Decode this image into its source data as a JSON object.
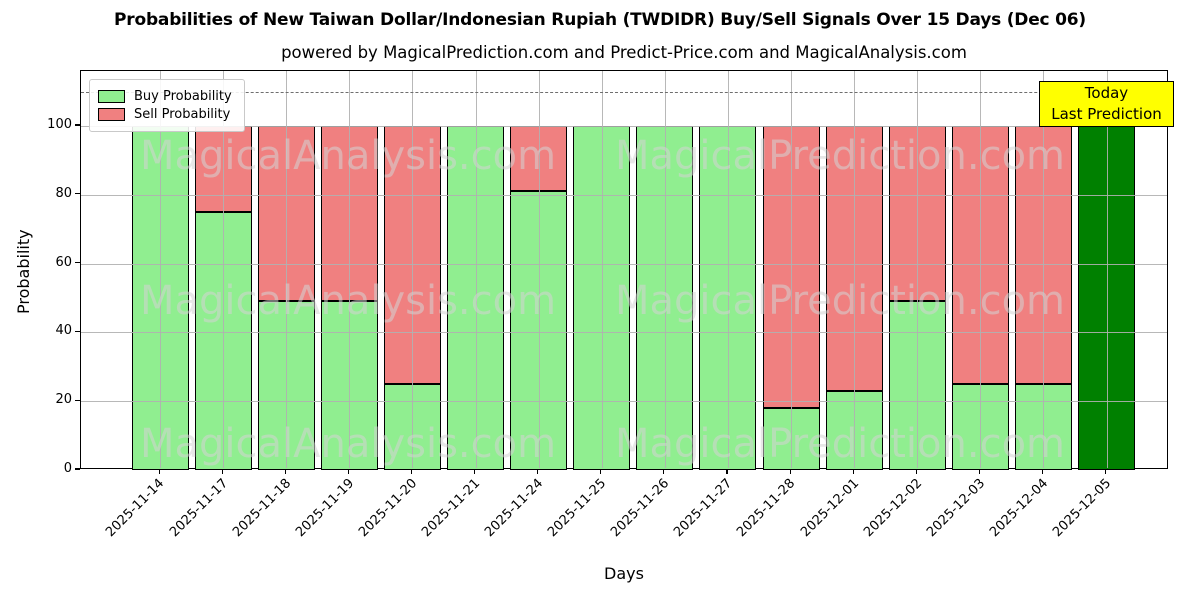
{
  "header": {
    "title": "Probabilities of New Taiwan Dollar/Indonesian Rupiah (TWDIDR) Buy/Sell Signals Over 15 Days (Dec 06)",
    "subtitle": "powered by MagicalPrediction.com and Predict-Price.com and MagicalAnalysis.com"
  },
  "axes": {
    "xlabel": "Days",
    "ylabel": "Probability"
  },
  "annotation": {
    "line1": "Today",
    "line2": "Last Prediction",
    "bg_color": "#FFFF00"
  },
  "watermarks": {
    "left": "MagicalAnalysis.com",
    "right": "MagicalPrediction.com"
  },
  "colors": {
    "buy": "#90EE90",
    "sell": "#F08080",
    "today_bar": "#008000",
    "annotation_bg": "#FFFF00",
    "grid": "#b0b0b0"
  },
  "chart_data": {
    "type": "bar",
    "stacked": true,
    "title": "Probabilities of New Taiwan Dollar/Indonesian Rupiah (TWDIDR) Buy/Sell Signals Over 15 Days (Dec 06)",
    "xlabel": "Days",
    "ylabel": "Probability",
    "categories": [
      "2025-11-14",
      "2025-11-17",
      "2025-11-18",
      "2025-11-19",
      "2025-11-20",
      "2025-11-21",
      "2025-11-24",
      "2025-11-25",
      "2025-11-26",
      "2025-11-27",
      "2025-11-28",
      "2025-12-01",
      "2025-12-02",
      "2025-12-03",
      "2025-12-04",
      "2025-12-05"
    ],
    "series": [
      {
        "name": "Buy Probability",
        "color": "#90EE90",
        "values": [
          100,
          75,
          49,
          49,
          25,
          100,
          81,
          100,
          100,
          100,
          18,
          23,
          49,
          25,
          25,
          100
        ]
      },
      {
        "name": "Sell Probability",
        "color": "#F08080",
        "values": [
          0,
          25,
          51,
          51,
          75,
          0,
          19,
          0,
          0,
          0,
          82,
          77,
          51,
          75,
          75,
          0
        ]
      }
    ],
    "today_bar": {
      "category": "2025-12-05",
      "value": 100,
      "color": "#008000",
      "note": "Today / Last Prediction"
    },
    "ylim": [
      0,
      116
    ],
    "yticks": [
      0,
      20,
      40,
      60,
      80,
      100
    ],
    "dashed_line_y": 110,
    "grid": true,
    "legend_position": "upper left"
  }
}
